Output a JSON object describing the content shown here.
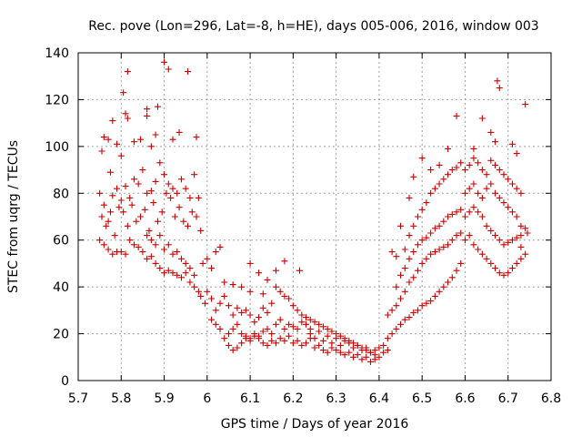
{
  "chart_data": {
    "type": "scatter",
    "title": "Rec. pove (Lon=296, Lat=-8, h=HE), days 005-006, 2016, window 003",
    "xlabel": "GPS time / Days of year 2016",
    "ylabel": "STEC from uqrg / TECUs",
    "xlim": [
      5.7,
      6.8
    ],
    "ylim": [
      0,
      140
    ],
    "xticks": [
      5.7,
      5.8,
      5.9,
      6.0,
      6.1,
      6.2,
      6.3,
      6.4,
      6.5,
      6.6,
      6.7,
      6.8
    ],
    "xtick_labels": [
      "5.7",
      "5.8",
      "5.9",
      "6",
      "6.1",
      "6.2",
      "6.3",
      "6.4",
      "6.5",
      "6.6",
      "6.7",
      "6.8"
    ],
    "yticks": [
      0,
      20,
      40,
      60,
      80,
      100,
      120,
      140
    ],
    "ytick_labels": [
      "0",
      "20",
      "40",
      "60",
      "80",
      "100",
      "120",
      "140"
    ],
    "grid": true,
    "marker": "+",
    "color": "#cc0000",
    "points": [
      [
        5.755,
        98
      ],
      [
        5.76,
        104
      ],
      [
        5.77,
        103
      ],
      [
        5.79,
        101
      ],
      [
        5.775,
        89
      ],
      [
        5.8,
        96
      ],
      [
        5.805,
        123
      ],
      [
        5.815,
        132
      ],
      [
        5.815,
        112
      ],
      [
        5.81,
        114
      ],
      [
        5.83,
        102
      ],
      [
        5.845,
        103
      ],
      [
        5.86,
        116
      ],
      [
        5.86,
        113
      ],
      [
        5.87,
        100
      ],
      [
        5.88,
        105
      ],
      [
        5.885,
        117
      ],
      [
        5.9,
        136
      ],
      [
        5.91,
        133
      ],
      [
        5.92,
        103
      ],
      [
        5.935,
        106
      ],
      [
        5.955,
        132
      ],
      [
        5.975,
        104
      ],
      [
        5.78,
        111
      ],
      [
        5.75,
        80
      ],
      [
        5.76,
        75
      ],
      [
        5.77,
        68
      ],
      [
        5.78,
        79
      ],
      [
        5.79,
        82
      ],
      [
        5.8,
        77
      ],
      [
        5.81,
        83
      ],
      [
        5.82,
        78
      ],
      [
        5.83,
        86
      ],
      [
        5.84,
        84
      ],
      [
        5.85,
        90
      ],
      [
        5.86,
        80
      ],
      [
        5.87,
        81
      ],
      [
        5.88,
        85
      ],
      [
        5.89,
        93
      ],
      [
        5.9,
        88
      ],
      [
        5.91,
        84
      ],
      [
        5.92,
        82
      ],
      [
        5.93,
        80
      ],
      [
        5.94,
        86
      ],
      [
        5.95,
        82
      ],
      [
        5.96,
        78
      ],
      [
        5.97,
        88
      ],
      [
        5.98,
        78
      ],
      [
        5.755,
        70
      ],
      [
        5.765,
        66
      ],
      [
        5.775,
        72
      ],
      [
        5.785,
        62
      ],
      [
        5.795,
        74
      ],
      [
        5.805,
        72
      ],
      [
        5.815,
        66
      ],
      [
        5.825,
        75
      ],
      [
        5.835,
        68
      ],
      [
        5.845,
        70
      ],
      [
        5.855,
        73
      ],
      [
        5.865,
        64
      ],
      [
        5.875,
        76
      ],
      [
        5.885,
        68
      ],
      [
        5.895,
        72
      ],
      [
        5.905,
        80
      ],
      [
        5.915,
        78
      ],
      [
        5.925,
        70
      ],
      [
        5.935,
        74
      ],
      [
        5.945,
        68
      ],
      [
        5.955,
        66
      ],
      [
        5.965,
        72
      ],
      [
        5.975,
        70
      ],
      [
        5.985,
        64
      ],
      [
        5.75,
        60
      ],
      [
        5.76,
        58
      ],
      [
        5.77,
        56
      ],
      [
        5.78,
        54
      ],
      [
        5.79,
        55
      ],
      [
        5.8,
        55
      ],
      [
        5.81,
        54
      ],
      [
        5.82,
        60
      ],
      [
        5.83,
        58
      ],
      [
        5.84,
        57
      ],
      [
        5.85,
        55
      ],
      [
        5.86,
        52
      ],
      [
        5.87,
        53
      ],
      [
        5.88,
        50
      ],
      [
        5.89,
        48
      ],
      [
        5.9,
        46
      ],
      [
        5.91,
        47
      ],
      [
        5.92,
        46
      ],
      [
        5.93,
        45
      ],
      [
        5.94,
        44
      ],
      [
        5.95,
        46
      ],
      [
        5.96,
        42
      ],
      [
        5.97,
        40
      ],
      [
        5.98,
        38
      ],
      [
        5.86,
        62
      ],
      [
        5.87,
        60
      ],
      [
        5.88,
        58
      ],
      [
        5.89,
        62
      ],
      [
        5.9,
        56
      ],
      [
        5.91,
        58
      ],
      [
        5.92,
        54
      ],
      [
        5.93,
        55
      ],
      [
        5.94,
        52
      ],
      [
        5.95,
        50
      ],
      [
        5.96,
        48
      ],
      [
        5.97,
        45
      ],
      [
        5.985,
        36
      ],
      [
        5.995,
        33
      ],
      [
        5.99,
        50
      ],
      [
        6.0,
        52
      ],
      [
        6.01,
        48
      ],
      [
        6.02,
        55
      ],
      [
        6.03,
        57
      ],
      [
        6.04,
        42
      ],
      [
        6.0,
        38
      ],
      [
        6.01,
        35
      ],
      [
        6.02,
        30
      ],
      [
        6.03,
        33
      ],
      [
        6.04,
        36
      ],
      [
        6.05,
        32
      ],
      [
        6.06,
        28
      ],
      [
        6.07,
        31
      ],
      [
        6.08,
        29
      ],
      [
        6.09,
        30
      ],
      [
        6.1,
        28
      ],
      [
        6.11,
        25
      ],
      [
        6.12,
        27
      ],
      [
        6.13,
        31
      ],
      [
        6.14,
        29
      ],
      [
        6.15,
        33
      ],
      [
        6.16,
        40
      ],
      [
        6.17,
        38
      ],
      [
        6.18,
        36
      ],
      [
        6.19,
        35
      ],
      [
        6.2,
        32
      ],
      [
        6.21,
        30
      ],
      [
        6.22,
        28
      ],
      [
        6.23,
        27
      ],
      [
        6.01,
        26
      ],
      [
        6.02,
        24
      ],
      [
        6.03,
        22
      ],
      [
        6.04,
        18
      ],
      [
        6.05,
        20
      ],
      [
        6.06,
        22
      ],
      [
        6.07,
        24
      ],
      [
        6.08,
        20
      ],
      [
        6.09,
        19
      ],
      [
        6.1,
        18
      ],
      [
        6.11,
        20
      ],
      [
        6.12,
        19
      ],
      [
        6.13,
        21
      ],
      [
        6.14,
        22
      ],
      [
        6.15,
        20
      ],
      [
        6.16,
        24
      ],
      [
        6.17,
        26
      ],
      [
        6.18,
        22
      ],
      [
        6.19,
        24
      ],
      [
        6.2,
        23
      ],
      [
        6.21,
        22
      ],
      [
        6.22,
        25
      ],
      [
        6.23,
        24
      ],
      [
        6.24,
        22
      ],
      [
        6.05,
        15
      ],
      [
        6.06,
        13
      ],
      [
        6.07,
        14
      ],
      [
        6.08,
        16
      ],
      [
        6.09,
        18
      ],
      [
        6.1,
        17
      ],
      [
        6.11,
        19
      ],
      [
        6.12,
        18
      ],
      [
        6.13,
        16
      ],
      [
        6.14,
        15
      ],
      [
        6.15,
        17
      ],
      [
        6.16,
        16
      ],
      [
        6.17,
        18
      ],
      [
        6.18,
        17
      ],
      [
        6.19,
        19
      ],
      [
        6.2,
        16
      ],
      [
        6.21,
        17
      ],
      [
        6.22,
        15
      ],
      [
        6.23,
        16
      ],
      [
        6.24,
        18
      ],
      [
        6.1,
        50
      ],
      [
        6.12,
        46
      ],
      [
        6.14,
        43
      ],
      [
        6.16,
        47
      ],
      [
        6.18,
        51
      ],
      [
        6.215,
        47
      ],
      [
        6.06,
        41
      ],
      [
        6.08,
        40
      ],
      [
        6.1,
        38
      ],
      [
        6.13,
        37
      ],
      [
        6.24,
        20
      ],
      [
        6.25,
        18
      ],
      [
        6.26,
        21
      ],
      [
        6.27,
        17
      ],
      [
        6.28,
        19
      ],
      [
        6.29,
        16
      ],
      [
        6.3,
        18
      ],
      [
        6.31,
        15
      ],
      [
        6.32,
        17
      ],
      [
        6.33,
        16
      ],
      [
        6.34,
        14
      ],
      [
        6.35,
        15
      ],
      [
        6.36,
        13
      ],
      [
        6.37,
        14
      ],
      [
        6.38,
        12
      ],
      [
        6.39,
        13
      ],
      [
        6.4,
        14
      ],
      [
        6.41,
        15
      ],
      [
        6.25,
        14
      ],
      [
        6.26,
        15
      ],
      [
        6.27,
        13
      ],
      [
        6.28,
        12
      ],
      [
        6.29,
        14
      ],
      [
        6.3,
        13
      ],
      [
        6.31,
        12
      ],
      [
        6.32,
        11
      ],
      [
        6.33,
        12
      ],
      [
        6.34,
        10
      ],
      [
        6.35,
        11
      ],
      [
        6.36,
        9
      ],
      [
        6.37,
        10
      ],
      [
        6.38,
        8
      ],
      [
        6.39,
        9
      ],
      [
        6.4,
        10
      ],
      [
        6.41,
        12
      ],
      [
        6.42,
        13
      ],
      [
        6.24,
        26
      ],
      [
        6.25,
        25
      ],
      [
        6.26,
        24
      ],
      [
        6.27,
        23
      ],
      [
        6.28,
        22
      ],
      [
        6.29,
        21
      ],
      [
        6.3,
        20
      ],
      [
        6.31,
        19
      ],
      [
        6.32,
        18
      ],
      [
        6.33,
        17
      ],
      [
        6.34,
        16
      ],
      [
        6.35,
        15
      ],
      [
        6.36,
        14
      ],
      [
        6.37,
        13
      ],
      [
        6.38,
        12
      ],
      [
        6.39,
        11
      ],
      [
        6.42,
        18
      ],
      [
        6.43,
        20
      ],
      [
        6.44,
        22
      ],
      [
        6.45,
        24
      ],
      [
        6.46,
        26
      ],
      [
        6.47,
        27
      ],
      [
        6.48,
        29
      ],
      [
        6.49,
        30
      ],
      [
        6.5,
        32
      ],
      [
        6.51,
        33
      ],
      [
        6.52,
        34
      ],
      [
        6.53,
        36
      ],
      [
        6.54,
        38
      ],
      [
        6.55,
        40
      ],
      [
        6.56,
        42
      ],
      [
        6.57,
        44
      ],
      [
        6.58,
        47
      ],
      [
        6.59,
        50
      ],
      [
        6.42,
        28
      ],
      [
        6.43,
        30
      ],
      [
        6.44,
        32
      ],
      [
        6.45,
        35
      ],
      [
        6.46,
        38
      ],
      [
        6.47,
        42
      ],
      [
        6.48,
        44
      ],
      [
        6.49,
        47
      ],
      [
        6.5,
        50
      ],
      [
        6.51,
        52
      ],
      [
        6.52,
        54
      ],
      [
        6.53,
        55
      ],
      [
        6.54,
        56
      ],
      [
        6.55,
        57
      ],
      [
        6.56,
        58
      ],
      [
        6.57,
        60
      ],
      [
        6.58,
        62
      ],
      [
        6.59,
        63
      ],
      [
        6.44,
        40
      ],
      [
        6.45,
        45
      ],
      [
        6.46,
        48
      ],
      [
        6.47,
        52
      ],
      [
        6.48,
        55
      ],
      [
        6.49,
        58
      ],
      [
        6.5,
        60
      ],
      [
        6.51,
        61
      ],
      [
        6.52,
        63
      ],
      [
        6.53,
        65
      ],
      [
        6.54,
        66
      ],
      [
        6.55,
        68
      ],
      [
        6.56,
        70
      ],
      [
        6.57,
        71
      ],
      [
        6.58,
        72
      ],
      [
        6.59,
        73
      ],
      [
        6.46,
        56
      ],
      [
        6.47,
        62
      ],
      [
        6.48,
        66
      ],
      [
        6.49,
        70
      ],
      [
        6.5,
        73
      ],
      [
        6.51,
        76
      ],
      [
        6.52,
        80
      ],
      [
        6.53,
        82
      ],
      [
        6.54,
        84
      ],
      [
        6.55,
        86
      ],
      [
        6.56,
        88
      ],
      [
        6.57,
        90
      ],
      [
        6.58,
        91
      ],
      [
        6.59,
        93
      ],
      [
        6.43,
        55
      ],
      [
        6.44,
        53
      ],
      [
        6.45,
        66
      ],
      [
        6.47,
        78
      ],
      [
        6.48,
        87
      ],
      [
        6.5,
        95
      ],
      [
        6.52,
        90
      ],
      [
        6.54,
        92
      ],
      [
        6.56,
        99
      ],
      [
        6.58,
        113
      ],
      [
        6.62,
        99
      ],
      [
        6.64,
        112
      ],
      [
        6.66,
        106
      ],
      [
        6.67,
        102
      ],
      [
        6.675,
        128
      ],
      [
        6.68,
        125
      ],
      [
        6.71,
        101
      ],
      [
        6.72,
        97
      ],
      [
        6.74,
        118
      ],
      [
        6.6,
        60
      ],
      [
        6.61,
        62
      ],
      [
        6.62,
        58
      ],
      [
        6.63,
        56
      ],
      [
        6.64,
        54
      ],
      [
        6.65,
        52
      ],
      [
        6.66,
        50
      ],
      [
        6.67,
        48
      ],
      [
        6.68,
        46
      ],
      [
        6.69,
        45
      ],
      [
        6.7,
        46
      ],
      [
        6.71,
        48
      ],
      [
        6.72,
        50
      ],
      [
        6.73,
        52
      ],
      [
        6.6,
        70
      ],
      [
        6.61,
        72
      ],
      [
        6.62,
        74
      ],
      [
        6.63,
        72
      ],
      [
        6.64,
        70
      ],
      [
        6.65,
        66
      ],
      [
        6.66,
        64
      ],
      [
        6.67,
        62
      ],
      [
        6.68,
        60
      ],
      [
        6.69,
        58
      ],
      [
        6.7,
        59
      ],
      [
        6.71,
        60
      ],
      [
        6.72,
        61
      ],
      [
        6.73,
        62
      ],
      [
        6.6,
        80
      ],
      [
        6.61,
        82
      ],
      [
        6.62,
        84
      ],
      [
        6.63,
        80
      ],
      [
        6.64,
        78
      ],
      [
        6.65,
        82
      ],
      [
        6.66,
        84
      ],
      [
        6.67,
        80
      ],
      [
        6.68,
        78
      ],
      [
        6.69,
        76
      ],
      [
        6.7,
        74
      ],
      [
        6.71,
        72
      ],
      [
        6.72,
        70
      ],
      [
        6.73,
        66
      ],
      [
        6.6,
        90
      ],
      [
        6.61,
        92
      ],
      [
        6.62,
        95
      ],
      [
        6.63,
        93
      ],
      [
        6.64,
        90
      ],
      [
        6.65,
        88
      ],
      [
        6.66,
        94
      ],
      [
        6.67,
        92
      ],
      [
        6.68,
        90
      ],
      [
        6.69,
        88
      ],
      [
        6.7,
        86
      ],
      [
        6.71,
        84
      ],
      [
        6.72,
        82
      ],
      [
        6.73,
        80
      ],
      [
        6.74,
        65
      ],
      [
        6.745,
        63
      ],
      [
        6.73,
        57
      ],
      [
        6.74,
        54
      ]
    ]
  }
}
